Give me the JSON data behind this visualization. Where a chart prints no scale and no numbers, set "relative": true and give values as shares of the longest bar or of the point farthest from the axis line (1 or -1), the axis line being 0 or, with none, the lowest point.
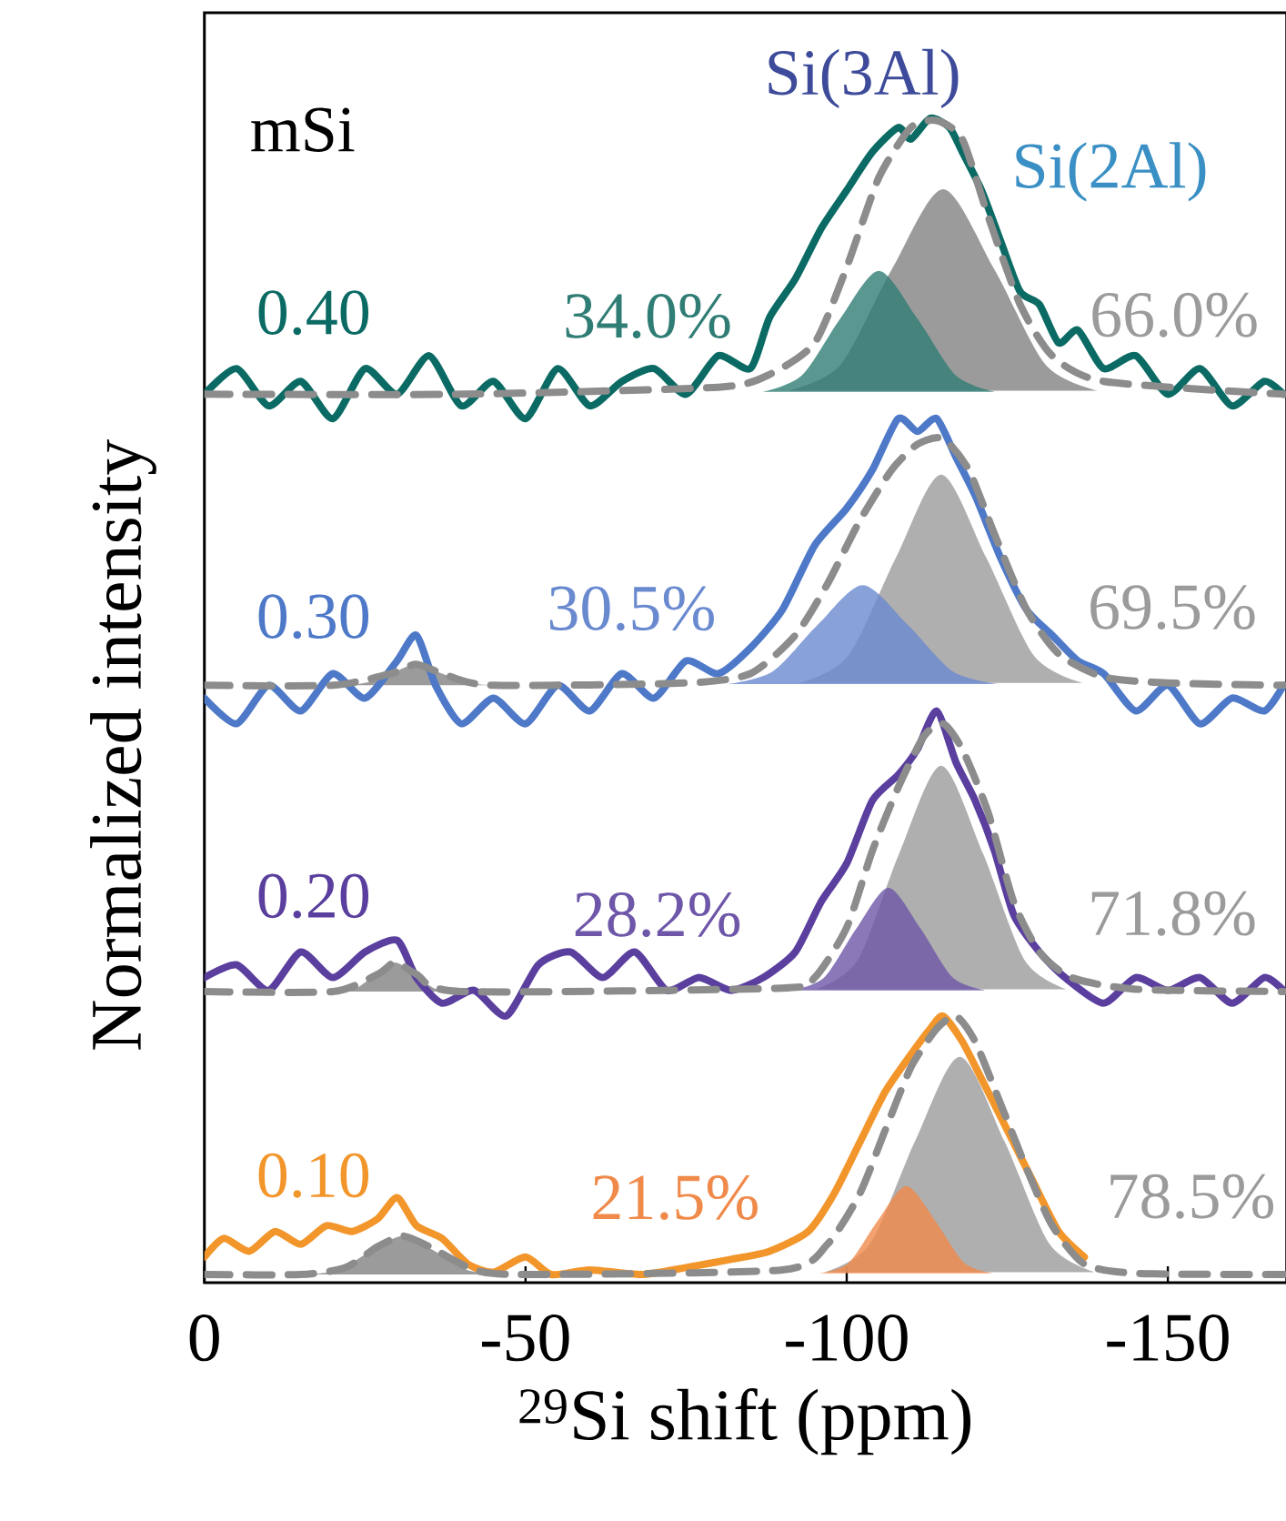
{
  "chart_data": {
    "type": "line",
    "relative": true,
    "xlabel": "$^{29}$Si shift (ppm)",
    "ylabel": "Normalized intensity",
    "xlim": [
      0,
      -168.5
    ],
    "xticks": [
      0,
      -50,
      -100,
      -150
    ],
    "annotations": [
      "mSi",
      "Si(3Al)",
      "Si(2Al)"
    ],
    "series": [
      {
        "name": "0.40",
        "line_style": "solid",
        "color": "#0b6b64",
        "x": [
          0,
          -5,
          -10,
          -15,
          -20,
          -25,
          -30,
          -35,
          -40,
          -45,
          -50,
          -55,
          -60,
          -65,
          -70,
          -75,
          -80,
          -85,
          -88,
          -92,
          -96,
          -100,
          -104,
          -108,
          -110,
          -113,
          -116,
          -118,
          -121,
          -124,
          -127,
          -130,
          -133,
          -136,
          -140,
          -145,
          -150,
          -155,
          -160,
          -165,
          -168
        ],
        "values": [
          0.763,
          0.785,
          0.753,
          0.774,
          0.742,
          0.785,
          0.763,
          0.796,
          0.753,
          0.774,
          0.742,
          0.785,
          0.753,
          0.774,
          0.785,
          0.763,
          0.796,
          0.785,
          0.829,
          0.862,
          0.905,
          0.938,
          0.971,
          0.992,
          0.982,
          1.0,
          0.992,
          0.971,
          0.938,
          0.894,
          0.851,
          0.84,
          0.807,
          0.818,
          0.785,
          0.796,
          0.763,
          0.785,
          0.753,
          0.774,
          0.763
        ]
      },
      {
        "type": "area",
        "name": "66.0%",
        "color": "#9b9b9b",
        "x": [
          -91,
          -99,
          -107,
          -115,
          -123,
          -131,
          -139
        ],
        "values": [
          0.766,
          0.788,
          0.87,
          0.939,
          0.87,
          0.788,
          0.766
        ]
      },
      {
        "type": "area",
        "name": "34.0%",
        "color": "#2f7d74",
        "x": [
          -87,
          -93,
          -99,
          -105,
          -111,
          -117,
          -123
        ],
        "values": [
          0.765,
          0.779,
          0.828,
          0.869,
          0.828,
          0.779,
          0.765
        ]
      },
      {
        "line_style": "dashed",
        "color": "#8c8c8c",
        "x": [
          0,
          -40,
          -80,
          -88,
          -95,
          -100,
          -105,
          -110,
          -114,
          -118,
          -122,
          -127,
          -132,
          -140,
          -168
        ],
        "values": [
          0.763,
          0.763,
          0.769,
          0.78,
          0.807,
          0.872,
          0.949,
          0.992,
          0.998,
          0.982,
          0.916,
          0.84,
          0.796,
          0.774,
          0.763
        ]
      },
      {
        "name": "0.30",
        "line_style": "solid",
        "color": "#4e79c8",
        "x": [
          0,
          -5,
          -10,
          -15,
          -20,
          -25,
          -30,
          -33,
          -36,
          -40,
          -45,
          -50,
          -55,
          -60,
          -65,
          -70,
          -75,
          -80,
          -85,
          -90,
          -95,
          -100,
          -104,
          -108,
          -111,
          -114,
          -117,
          -120,
          -124,
          -128,
          -132,
          -136,
          -140,
          -145,
          -150,
          -155,
          -160,
          -165,
          -168
        ],
        "values": [
          0.502,
          0.48,
          0.513,
          0.491,
          0.523,
          0.502,
          0.534,
          0.556,
          0.513,
          0.48,
          0.502,
          0.48,
          0.513,
          0.491,
          0.523,
          0.502,
          0.534,
          0.523,
          0.545,
          0.578,
          0.633,
          0.665,
          0.698,
          0.742,
          0.731,
          0.742,
          0.709,
          0.676,
          0.622,
          0.578,
          0.556,
          0.534,
          0.523,
          0.491,
          0.513,
          0.48,
          0.502,
          0.491,
          0.513
        ]
      },
      {
        "type": "area",
        "color": "#9b9b9b",
        "x": [
          -21,
          -25,
          -29,
          -33,
          -37,
          -41,
          -45
        ],
        "values": [
          0.513,
          0.515,
          0.523,
          0.531,
          0.523,
          0.515,
          0.513
        ]
      },
      {
        "type": "area",
        "name": "69.5%",
        "color": "#9b9b9b",
        "x": [
          -92.7,
          -100.2,
          -107.7,
          -114.7,
          -121.7,
          -129.2,
          -136.7
        ],
        "values": [
          0.515,
          0.538,
          0.623,
          0.694,
          0.623,
          0.538,
          0.515
        ]
      },
      {
        "type": "area",
        "name": "30.5%",
        "color": "#6a8ad0",
        "x": [
          -81.5,
          -88.5,
          -95.5,
          -102.5,
          -109.5,
          -116.5,
          -123.5
        ],
        "values": [
          0.514,
          0.525,
          0.565,
          0.599,
          0.565,
          0.525,
          0.514
        ]
      },
      {
        "line_style": "dashed",
        "color": "#8c8c8c",
        "x": [
          0,
          -20,
          -29,
          -33,
          -38,
          -45,
          -75,
          -85,
          -92,
          -97,
          -102,
          -107,
          -111,
          -115,
          -119,
          -123,
          -128,
          -133,
          -140,
          -150,
          -168
        ],
        "values": [
          0.513,
          0.513,
          0.523,
          0.531,
          0.521,
          0.513,
          0.515,
          0.523,
          0.556,
          0.6,
          0.654,
          0.698,
          0.72,
          0.725,
          0.698,
          0.643,
          0.578,
          0.54,
          0.52,
          0.515,
          0.513
        ]
      },
      {
        "name": "0.20",
        "line_style": "solid",
        "color": "#5b3f9e",
        "x": [
          0,
          -5,
          -10,
          -15,
          -20,
          -25,
          -30,
          -33,
          -37,
          -42,
          -47,
          -52,
          -57,
          -62,
          -67,
          -72,
          -77,
          -82,
          -87,
          -92,
          -96,
          -100,
          -104,
          -108,
          -111,
          -114,
          -117,
          -120,
          -123,
          -126,
          -130,
          -134,
          -140,
          -145,
          -150,
          -155,
          -160,
          -165,
          -168
        ],
        "values": [
          0.262,
          0.273,
          0.251,
          0.284,
          0.262,
          0.284,
          0.294,
          0.262,
          0.24,
          0.251,
          0.229,
          0.273,
          0.284,
          0.262,
          0.284,
          0.251,
          0.262,
          0.251,
          0.262,
          0.284,
          0.327,
          0.36,
          0.414,
          0.436,
          0.458,
          0.491,
          0.447,
          0.414,
          0.371,
          0.316,
          0.284,
          0.262,
          0.24,
          0.262,
          0.251,
          0.262,
          0.24,
          0.262,
          0.251
        ]
      },
      {
        "type": "area",
        "color": "#9b9b9b",
        "x": [
          -20.7,
          -23.7,
          -26.7,
          -29.7,
          -32.7,
          -35.7,
          -38.7
        ],
        "values": [
          0.25,
          0.253,
          0.265,
          0.275,
          0.265,
          0.253,
          0.25
        ]
      },
      {
        "type": "area",
        "name": "71.8%",
        "color": "#9b9b9b",
        "x": [
          -95.2,
          -101.7,
          -108.2,
          -114.7,
          -121.2,
          -127.7,
          -134.2
        ],
        "values": [
          0.252,
          0.277,
          0.369,
          0.444,
          0.369,
          0.277,
          0.252
        ]
      },
      {
        "type": "area",
        "name": "28.2%",
        "color": "#6e56a8",
        "x": [
          -91.5,
          -96.5,
          -101.5,
          -106.5,
          -111.5,
          -116.5,
          -121.5
        ],
        "values": [
          0.251,
          0.262,
          0.304,
          0.339,
          0.304,
          0.262,
          0.251
        ]
      },
      {
        "line_style": "dashed",
        "color": "#8c8c8c",
        "x": [
          0,
          -20,
          -27,
          -29.7,
          -33,
          -40,
          -90,
          -95,
          -100,
          -104,
          -108,
          -112,
          -115,
          -118,
          -122,
          -126,
          -130,
          -135,
          -145,
          -168
        ],
        "values": [
          0.25,
          0.25,
          0.265,
          0.275,
          0.265,
          0.25,
          0.253,
          0.262,
          0.305,
          0.371,
          0.425,
          0.469,
          0.48,
          0.458,
          0.404,
          0.327,
          0.284,
          0.262,
          0.252,
          0.25
        ]
      },
      {
        "name": "0.10",
        "line_style": "solid",
        "color": "#f2962b",
        "x": [
          0,
          -3,
          -7,
          -11,
          -15,
          -19,
          -23,
          -27,
          -30,
          -33,
          -37,
          -41,
          -45,
          -50,
          -54,
          -60,
          -68,
          -75,
          -82,
          -88,
          -94,
          -98,
          -102,
          -106,
          -110,
          -113,
          -115,
          -118,
          -121,
          -125,
          -129,
          -133,
          -137
        ],
        "values": [
          0.022,
          0.038,
          0.027,
          0.044,
          0.033,
          0.049,
          0.044,
          0.055,
          0.073,
          0.049,
          0.038,
          0.016,
          0.009,
          0.022,
          0.007,
          0.011,
          0.007,
          0.013,
          0.02,
          0.027,
          0.044,
          0.076,
          0.12,
          0.164,
          0.196,
          0.218,
          0.229,
          0.207,
          0.175,
          0.131,
          0.087,
          0.044,
          0.022
        ]
      },
      {
        "type": "area",
        "color": "#9b9b9b",
        "x": [
          -15.9,
          -20.9,
          -25.9,
          -30.9,
          -35.9,
          -40.9,
          -45.9
        ],
        "values": [
          0.007,
          0.011,
          0.027,
          0.04,
          0.027,
          0.011,
          0.007
        ]
      },
      {
        "type": "area",
        "name": "78.5%",
        "color": "#9b9b9b",
        "x": [
          -96.6,
          -103.6,
          -110.6,
          -117.6,
          -124.6,
          -131.6,
          -138.6
        ],
        "values": [
          0.009,
          0.033,
          0.121,
          0.194,
          0.121,
          0.033,
          0.009
        ]
      },
      {
        "type": "area",
        "name": "21.5%",
        "color": "#f08a4a",
        "x": [
          -95.8,
          -100.3,
          -104.8,
          -109.3,
          -113.8,
          -118.3,
          -122.8
        ],
        "values": [
          0.008,
          0.017,
          0.053,
          0.083,
          0.053,
          0.017,
          0.008
        ]
      },
      {
        "line_style": "dashed",
        "color": "#8c8c8c",
        "x": [
          0,
          -15,
          -22,
          -27,
          -30.9,
          -35,
          -42,
          -50,
          -90,
          -97,
          -102,
          -106,
          -110,
          -114,
          -117,
          -120,
          -124,
          -128,
          -132,
          -137,
          -145,
          -168
        ],
        "values": [
          0.007,
          0.007,
          0.013,
          0.031,
          0.04,
          0.031,
          0.011,
          0.007,
          0.011,
          0.033,
          0.076,
          0.131,
          0.185,
          0.218,
          0.229,
          0.207,
          0.153,
          0.098,
          0.049,
          0.016,
          0.008,
          0.007
        ]
      }
    ]
  }
}
